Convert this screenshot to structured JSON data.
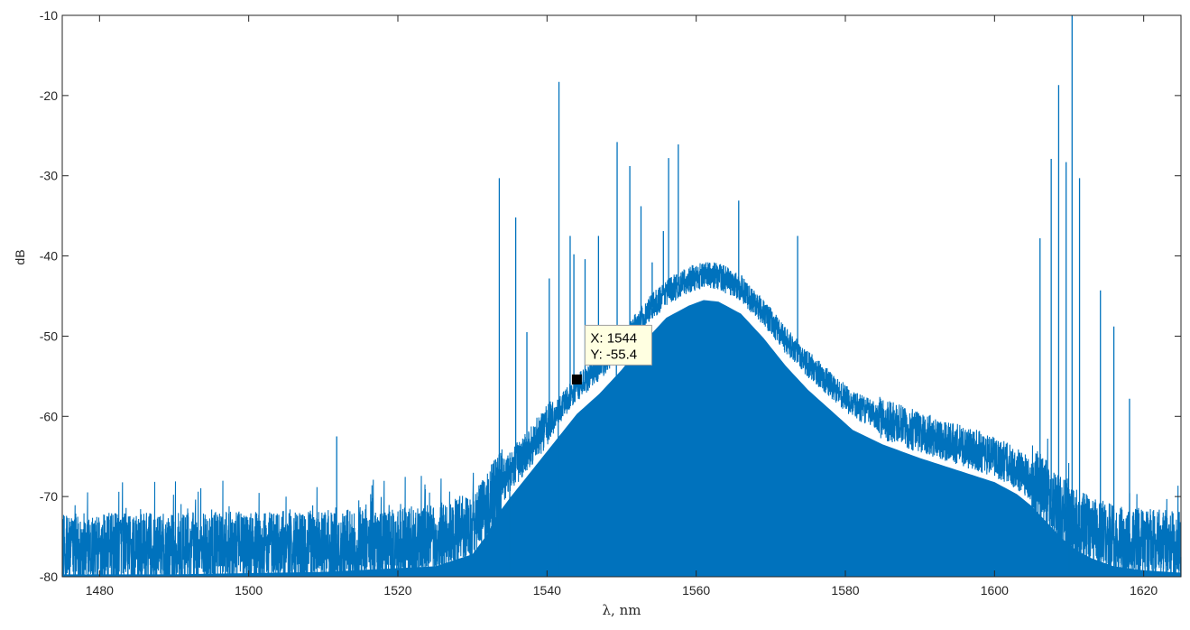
{
  "chart_data": {
    "type": "line",
    "title": "",
    "xlabel": "λ, nm",
    "ylabel": "dB",
    "xlim": [
      1475,
      1625
    ],
    "ylim": [
      -80,
      -10
    ],
    "xticks": [
      1480,
      1500,
      1520,
      1540,
      1560,
      1580,
      1600,
      1620
    ],
    "yticks": [
      -80,
      -70,
      -60,
      -50,
      -40,
      -30,
      -20,
      -10
    ],
    "xtick_labels": [
      "1480",
      "1500",
      "1520",
      "1540",
      "1560",
      "1580",
      "1600",
      "1620"
    ],
    "ytick_labels": [
      "-80",
      "-70",
      "-60",
      "-50",
      "-40",
      "-30",
      "-20",
      "-10"
    ],
    "grid": false,
    "series_color": "#0072BD",
    "envelope": {
      "x": [
        1475,
        1490,
        1510,
        1525,
        1530,
        1532,
        1533,
        1535,
        1538,
        1541,
        1544,
        1547,
        1550,
        1553,
        1556,
        1559,
        1561,
        1563,
        1566,
        1569,
        1572,
        1575,
        1578,
        1581,
        1585,
        1590,
        1595,
        1600,
        1603,
        1605,
        1607,
        1609,
        1611,
        1613,
        1616,
        1620,
        1625
      ],
      "y": [
        -76.5,
        -76.5,
        -76.2,
        -75.5,
        -74,
        -71.5,
        -69.5,
        -67,
        -63.5,
        -60,
        -56.5,
        -54,
        -51,
        -47.5,
        -44.5,
        -43,
        -42.3,
        -42.5,
        -44,
        -47,
        -50.5,
        -53.5,
        -56,
        -58.5,
        -60.3,
        -62,
        -63.5,
        -65,
        -66.5,
        -68,
        -70,
        -72,
        -73.5,
        -74.5,
        -75.5,
        -76,
        -76.3
      ]
    },
    "spikes": [
      {
        "x": 1511.8,
        "y": -62.5
      },
      {
        "x": 1533.6,
        "y": -30.3
      },
      {
        "x": 1535.8,
        "y": -35.2
      },
      {
        "x": 1537.3,
        "y": -49.5
      },
      {
        "x": 1540.3,
        "y": -42.8
      },
      {
        "x": 1541.6,
        "y": -18.3
      },
      {
        "x": 1543.1,
        "y": -37.5
      },
      {
        "x": 1543.6,
        "y": -39.8
      },
      {
        "x": 1545.1,
        "y": -40.4
      },
      {
        "x": 1546.9,
        "y": -37.5
      },
      {
        "x": 1549.4,
        "y": -25.8
      },
      {
        "x": 1551.1,
        "y": -28.8
      },
      {
        "x": 1552.6,
        "y": -33.8
      },
      {
        "x": 1554.1,
        "y": -40.8
      },
      {
        "x": 1555.6,
        "y": -36.9
      },
      {
        "x": 1556.3,
        "y": -27.8
      },
      {
        "x": 1557.6,
        "y": -26.1
      },
      {
        "x": 1565.7,
        "y": -33.1
      },
      {
        "x": 1573.6,
        "y": -37.5
      },
      {
        "x": 1606.1,
        "y": -37.8
      },
      {
        "x": 1607.6,
        "y": -27.9
      },
      {
        "x": 1608.6,
        "y": -18.7
      },
      {
        "x": 1609.6,
        "y": -28.3
      },
      {
        "x": 1610.4,
        "y": -10.0
      },
      {
        "x": 1611.4,
        "y": -30.3
      },
      {
        "x": 1614.2,
        "y": -44.3
      },
      {
        "x": 1616.0,
        "y": -48.8
      },
      {
        "x": 1618.1,
        "y": -57.8
      }
    ],
    "dips": [
      {
        "x": 1533.0,
        "y": -80
      },
      {
        "x": 1535.0,
        "y": -80
      },
      {
        "x": 1541.5,
        "y": -80
      },
      {
        "x": 1549.3,
        "y": -69.5
      },
      {
        "x": 1608.0,
        "y": -80
      },
      {
        "x": 1610.0,
        "y": -80
      }
    ],
    "annotations": [
      {
        "x": 1544,
        "y": -55.4,
        "x_text": "X: 1544",
        "y_text": "Y: -55.4"
      }
    ]
  }
}
